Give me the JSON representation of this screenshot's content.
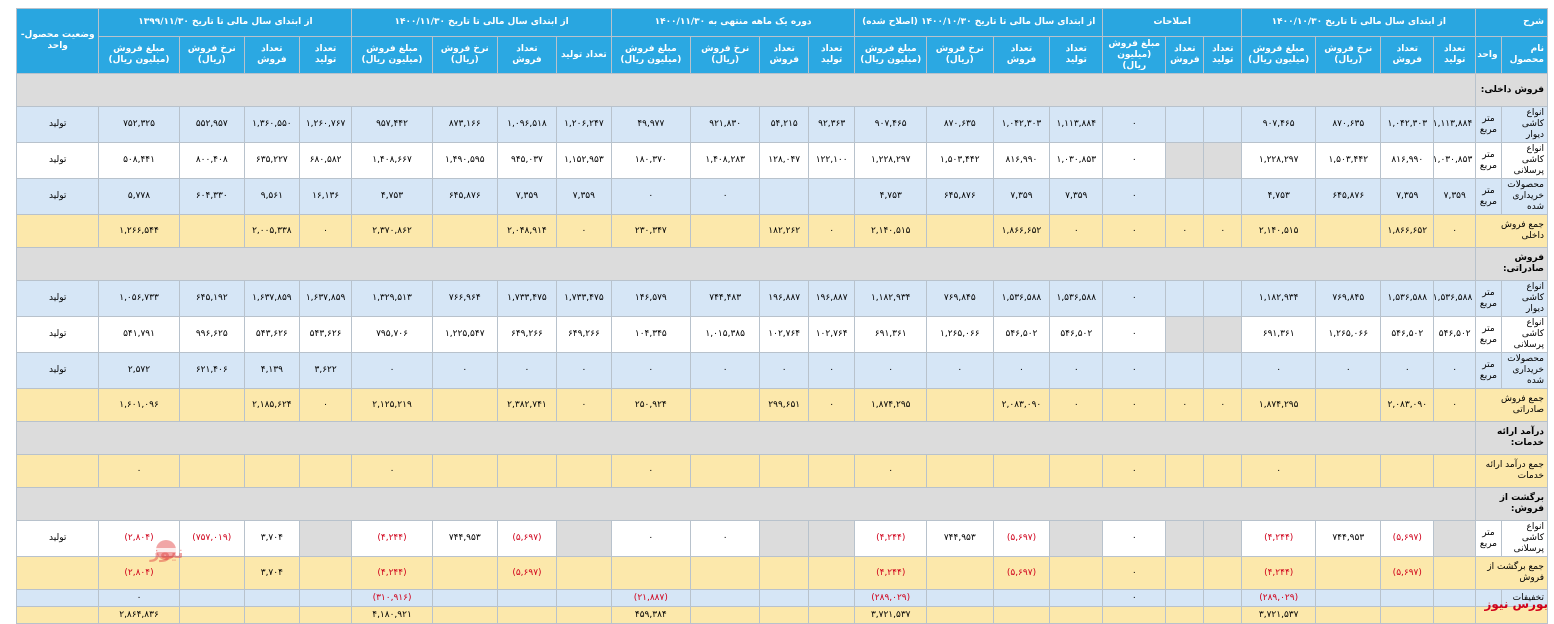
{
  "header": {
    "groups": [
      {
        "key": "desc",
        "label": "شرح"
      },
      {
        "key": "g1",
        "label": "از ابتدای سال مالی تا تاریخ ۱۴۰۰/۱۰/۳۰"
      },
      {
        "key": "g2",
        "label": "اصلاحات"
      },
      {
        "key": "g3",
        "label": "از ابتدای سال مالی تا تاریخ ۱۴۰۰/۱۰/۳۰ (اصلاح شده)"
      },
      {
        "key": "g4",
        "label": "دوره یک ماهه منتهی به ۱۴۰۰/۱۱/۳۰"
      },
      {
        "key": "g5",
        "label": "از ابتدای سال مالی تا تاریخ ۱۴۰۰/۱۱/۳۰"
      },
      {
        "key": "g6",
        "label": "از ابتدای سال مالی تا تاریخ ۱۳۹۹/۱۱/۳۰"
      },
      {
        "key": "status",
        "label": "وضعیت محصول-واحد"
      }
    ],
    "sub": {
      "product_name": "نام محصول",
      "unit": "واحد",
      "production_count": "تعداد تولید",
      "sales_count": "تعداد فروش",
      "sales_rate": "نرخ فروش (ریال)",
      "sales_amount": "مبلغ فروش (میلیون ریال)"
    }
  },
  "rows": [
    {
      "type": "sec",
      "label": "فروش داخلی:"
    },
    {
      "type": "blue",
      "name": "انواع کاشی دیوار",
      "unit": "متر مربع",
      "g1": [
        "۱,۱۱۳,۸۸۴",
        "۱,۰۴۲,۳۰۳",
        "۸۷۰,۶۳۵",
        "۹۰۷,۴۶۵"
      ],
      "g2": [
        "",
        "",
        "۰"
      ],
      "g3": [
        "۱,۱۱۳,۸۸۴",
        "۱,۰۴۲,۳۰۳",
        "۸۷۰,۶۳۵",
        "۹۰۷,۴۶۵"
      ],
      "g4": [
        "۹۲,۳۶۳",
        "۵۴,۲۱۵",
        "۹۲۱,۸۳۰",
        "۴۹,۹۷۷"
      ],
      "g5": [
        "۱,۲۰۶,۲۴۷",
        "۱,۰۹۶,۵۱۸",
        "۸۷۳,۱۶۶",
        "۹۵۷,۴۴۲"
      ],
      "g6": [
        "۱,۲۶۰,۷۶۷",
        "۱,۳۶۰,۵۵۰",
        "۵۵۲,۹۵۷",
        "۷۵۲,۳۲۵"
      ],
      "status": "تولید"
    },
    {
      "type": "white",
      "name": "انواع کاشی پرسلانی",
      "unit": "متر مربع",
      "g1": [
        "۱,۰۳۰,۸۵۳",
        "۸۱۶,۹۹۰",
        "۱,۵۰۳,۴۴۲",
        "۱,۲۲۸,۲۹۷"
      ],
      "g2": [
        "",
        "",
        "۰"
      ],
      "g3": [
        "۱,۰۳۰,۸۵۳",
        "۸۱۶,۹۹۰",
        "۱,۵۰۳,۴۴۲",
        "۱,۲۲۸,۲۹۷"
      ],
      "g4": [
        "۱۲۲,۱۰۰",
        "۱۲۸,۰۴۷",
        "۱,۴۰۸,۲۸۳",
        "۱۸۰,۳۷۰"
      ],
      "g5": [
        "۱,۱۵۲,۹۵۳",
        "۹۴۵,۰۳۷",
        "۱,۴۹۰,۵۹۵",
        "۱,۴۰۸,۶۶۷"
      ],
      "g6": [
        "۶۸۰,۵۸۲",
        "۶۳۵,۲۲۷",
        "۸۰۰,۴۰۸",
        "۵۰۸,۴۴۱"
      ],
      "status": "تولید"
    },
    {
      "type": "blue",
      "name": "محصولات خریداری شده",
      "unit": "متر مربع",
      "g1": [
        "۷,۳۵۹",
        "۷,۳۵۹",
        "۶۴۵,۸۷۶",
        "۴,۷۵۳"
      ],
      "g2": [
        "",
        "",
        "۰"
      ],
      "g3": [
        "۷,۳۵۹",
        "۷,۳۵۹",
        "۶۴۵,۸۷۶",
        "۴,۷۵۳"
      ],
      "g4": [
        "",
        "",
        "۰",
        "۰"
      ],
      "g5": [
        "۷,۳۵۹",
        "۷,۳۵۹",
        "۶۴۵,۸۷۶",
        "۴,۷۵۳"
      ],
      "g6": [
        "۱۶,۱۳۶",
        "۹,۵۶۱",
        "۶۰۴,۳۳۰",
        "۵,۷۷۸"
      ],
      "status": "تولید"
    },
    {
      "type": "yellow",
      "name": "جمع فروش داخلی",
      "unit": "",
      "g1": [
        "۰",
        "۱,۸۶۶,۶۵۲",
        "",
        "۲,۱۴۰,۵۱۵"
      ],
      "g2": [
        "۰",
        "۰",
        "۰"
      ],
      "g3": [
        "۰",
        "۱,۸۶۶,۶۵۲",
        "",
        "۲,۱۴۰,۵۱۵"
      ],
      "g4": [
        "۰",
        "۱۸۲,۲۶۲",
        "",
        "۲۳۰,۳۴۷"
      ],
      "g5": [
        "۰",
        "۲,۰۴۸,۹۱۴",
        "",
        "۲,۳۷۰,۸۶۲"
      ],
      "g6": [
        "۰",
        "۲,۰۰۵,۳۳۸",
        "",
        "۱,۲۶۶,۵۴۴"
      ],
      "status": ""
    },
    {
      "type": "sec",
      "label": "فروش صادراتی:"
    },
    {
      "type": "blue",
      "name": "انواع کاشی دیوار",
      "unit": "متر مربع",
      "g1": [
        "۱,۵۳۶,۵۸۸",
        "۱,۵۳۶,۵۸۸",
        "۷۶۹,۸۴۵",
        "۱,۱۸۲,۹۳۴"
      ],
      "g2": [
        "",
        "",
        "۰"
      ],
      "g3": [
        "۱,۵۳۶,۵۸۸",
        "۱,۵۳۶,۵۸۸",
        "۷۶۹,۸۴۵",
        "۱,۱۸۲,۹۳۴"
      ],
      "g4": [
        "۱۹۶,۸۸۷",
        "۱۹۶,۸۸۷",
        "۷۴۴,۴۸۳",
        "۱۴۶,۵۷۹"
      ],
      "g5": [
        "۱,۷۳۳,۴۷۵",
        "۱,۷۳۳,۴۷۵",
        "۷۶۶,۹۶۴",
        "۱,۳۲۹,۵۱۳"
      ],
      "g6": [
        "۱,۶۳۷,۸۵۹",
        "۱,۶۳۷,۸۵۹",
        "۶۴۵,۱۹۲",
        "۱,۰۵۶,۷۳۳"
      ],
      "status": "تولید"
    },
    {
      "type": "white",
      "name": "انواع کاشی پرسلانی",
      "unit": "متر مربع",
      "g1": [
        "۵۴۶,۵۰۲",
        "۵۴۶,۵۰۲",
        "۱,۲۶۵,۰۶۶",
        "۶۹۱,۳۶۱"
      ],
      "g2": [
        "",
        "",
        "۰"
      ],
      "g3": [
        "۵۴۶,۵۰۲",
        "۵۴۶,۵۰۲",
        "۱,۲۶۵,۰۶۶",
        "۶۹۱,۳۶۱"
      ],
      "g4": [
        "۱۰۲,۷۶۴",
        "۱۰۲,۷۶۴",
        "۱,۰۱۵,۳۸۵",
        "۱۰۴,۳۴۵"
      ],
      "g5": [
        "۶۴۹,۲۶۶",
        "۶۴۹,۲۶۶",
        "۱,۲۲۵,۵۴۷",
        "۷۹۵,۷۰۶"
      ],
      "g6": [
        "۵۴۳,۶۲۶",
        "۵۴۳,۶۲۶",
        "۹۹۶,۶۲۵",
        "۵۴۱,۷۹۱"
      ],
      "status": "تولید"
    },
    {
      "type": "blue",
      "name": "محصولات خریداری شده",
      "unit": "متر مربع",
      "g1": [
        "۰",
        "۰",
        "۰",
        "۰"
      ],
      "g2": [
        "",
        "",
        "۰"
      ],
      "g3": [
        "۰",
        "۰",
        "۰",
        "۰"
      ],
      "g4": [
        "۰",
        "۰",
        "۰",
        "۰"
      ],
      "g5": [
        "۰",
        "۰",
        "۰",
        "۰"
      ],
      "g6": [
        "۳,۶۲۲",
        "۴,۱۳۹",
        "۶۲۱,۴۰۶",
        "۲,۵۷۲"
      ],
      "status": "تولید"
    },
    {
      "type": "yellow",
      "name": "جمع فروش صادراتی",
      "unit": "",
      "g1": [
        "۰",
        "۲,۰۸۳,۰۹۰",
        "",
        "۱,۸۷۴,۲۹۵"
      ],
      "g2": [
        "۰",
        "۰",
        "۰"
      ],
      "g3": [
        "۰",
        "۲,۰۸۳,۰۹۰",
        "",
        "۱,۸۷۴,۲۹۵"
      ],
      "g4": [
        "۰",
        "۲۹۹,۶۵۱",
        "",
        "۲۵۰,۹۲۴"
      ],
      "g5": [
        "۰",
        "۲,۳۸۲,۷۴۱",
        "",
        "۲,۱۲۵,۲۱۹"
      ],
      "g6": [
        "۰",
        "۲,۱۸۵,۶۲۴",
        "",
        "۱,۶۰۱,۰۹۶"
      ],
      "status": ""
    },
    {
      "type": "sec",
      "label": "درآمد ارائه خدمات:"
    },
    {
      "type": "yellow",
      "name": "جمع درآمد ارائه خدمات",
      "unit": "",
      "g1": [
        "",
        "",
        "",
        "۰"
      ],
      "g2": [
        "",
        "",
        "۰"
      ],
      "g3": [
        "",
        "",
        "",
        "۰"
      ],
      "g4": [
        "",
        "",
        "",
        "۰"
      ],
      "g5": [
        "",
        "",
        "",
        "۰"
      ],
      "g6": [
        "",
        "",
        "",
        "۰"
      ],
      "status": ""
    },
    {
      "type": "sec",
      "label": "برگشت از فروش:"
    },
    {
      "type": "white",
      "name": "انواع کاشی پرسلانی",
      "unit": "متر مربع",
      "g1": [
        "",
        "(۵,۶۹۷)",
        "۷۴۴,۹۵۳",
        "(۴,۲۴۴)"
      ],
      "g2": [
        "",
        "",
        "۰"
      ],
      "g3": [
        "",
        "(۵,۶۹۷)",
        "۷۴۴,۹۵۳",
        "(۴,۲۴۴)"
      ],
      "g4": [
        "",
        "",
        "۰",
        "۰"
      ],
      "g5": [
        "",
        "(۵,۶۹۷)",
        "۷۴۴,۹۵۳",
        "(۴,۲۴۴)"
      ],
      "g6": [
        "",
        "۳,۷۰۴",
        "(۷۵۷,۰۱۹)",
        "(۲,۸۰۴)"
      ],
      "status": "تولید"
    },
    {
      "type": "yellow",
      "name": "جمع برگشت از فروش",
      "unit": "",
      "g1": [
        "",
        "(۵,۶۹۷)",
        "",
        "(۴,۲۴۴)"
      ],
      "g2": [
        "",
        "",
        "۰"
      ],
      "g3": [
        "",
        "(۵,۶۹۷)",
        "",
        "(۴,۲۴۴)"
      ],
      "g4": [
        "",
        "",
        "",
        ""
      ],
      "g5": [
        "",
        "(۵,۶۹۷)",
        "",
        "(۴,۲۴۴)"
      ],
      "g6": [
        "",
        "۳,۷۰۴",
        "",
        "(۲,۸۰۴)"
      ],
      "status": ""
    },
    {
      "type": "blue",
      "thin": true,
      "name": "تخفیفات",
      "unit": "",
      "g1": [
        "",
        "",
        "",
        "(۲۸۹,۰۲۹)"
      ],
      "g2": [
        "",
        "",
        "۰"
      ],
      "g3": [
        "",
        "",
        "",
        "(۲۸۹,۰۲۹)"
      ],
      "g4": [
        "",
        "",
        "",
        "(۲۱,۸۸۷)"
      ],
      "g5": [
        "",
        "",
        "",
        "(۳۱۰,۹۱۶)"
      ],
      "g6": [
        "",
        "",
        "",
        "۰"
      ],
      "status": ""
    },
    {
      "type": "yellow",
      "thin": true,
      "name": "",
      "unit": "",
      "g1": [
        "",
        "",
        "",
        "۳,۷۲۱,۵۳۷"
      ],
      "g2": [
        "",
        "",
        ""
      ],
      "g3": [
        "",
        "",
        "",
        "۳,۷۲۱,۵۳۷"
      ],
      "g4": [
        "",
        "",
        "",
        "۴۵۹,۳۸۴"
      ],
      "g5": [
        "",
        "",
        "",
        "۴,۱۸۰,۹۲۱"
      ],
      "g6": [
        "",
        "",
        "",
        "۲,۸۶۴,۸۳۶"
      ],
      "status": ""
    }
  ],
  "watermark": "بورس نیوز",
  "footer_brand": "بورس نیوز",
  "colors": {
    "header": "#29a6e0",
    "blue_row": "#d6e6f6",
    "gray_row": "#dcdcdc",
    "yellow_row": "#fce8ab",
    "negative": "#d0021b"
  }
}
